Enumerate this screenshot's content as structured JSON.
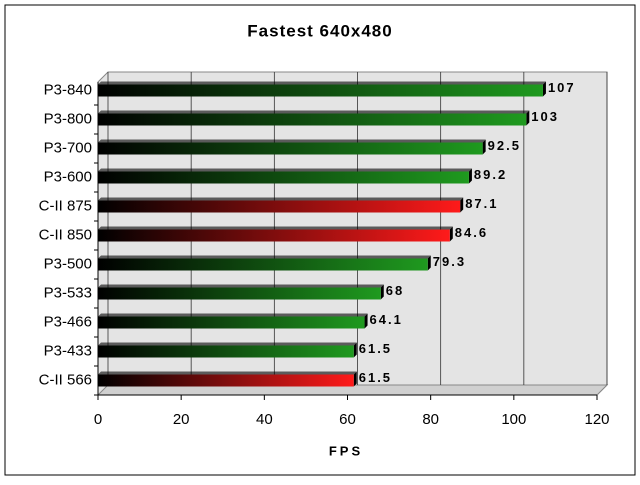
{
  "chart_data": {
    "type": "bar",
    "orientation": "horizontal",
    "title": "Fastest 640x480",
    "x_label": "FPS",
    "categories": [
      "P3-840",
      "P3-800",
      "P3-700",
      "P3-600",
      "C-II 875",
      "C-II 850",
      "P3-500",
      "P3-533",
      "P3-466",
      "P3-433",
      "C-II 566"
    ],
    "values": [
      107,
      103,
      92.5,
      89.2,
      87.1,
      84.6,
      79.3,
      68,
      64.1,
      61.5,
      61.5
    ],
    "colors": [
      "#1f9a1f",
      "#1f9a1f",
      "#1f9a1f",
      "#1f9a1f",
      "#ff1a1a",
      "#ff1a1a",
      "#1f9a1f",
      "#1f9a1f",
      "#1f9a1f",
      "#1f9a1f",
      "#ff1a1a"
    ],
    "xlim": [
      0,
      120
    ],
    "xticks": [
      0,
      20,
      40,
      60,
      80,
      100,
      120
    ],
    "grid": true
  }
}
